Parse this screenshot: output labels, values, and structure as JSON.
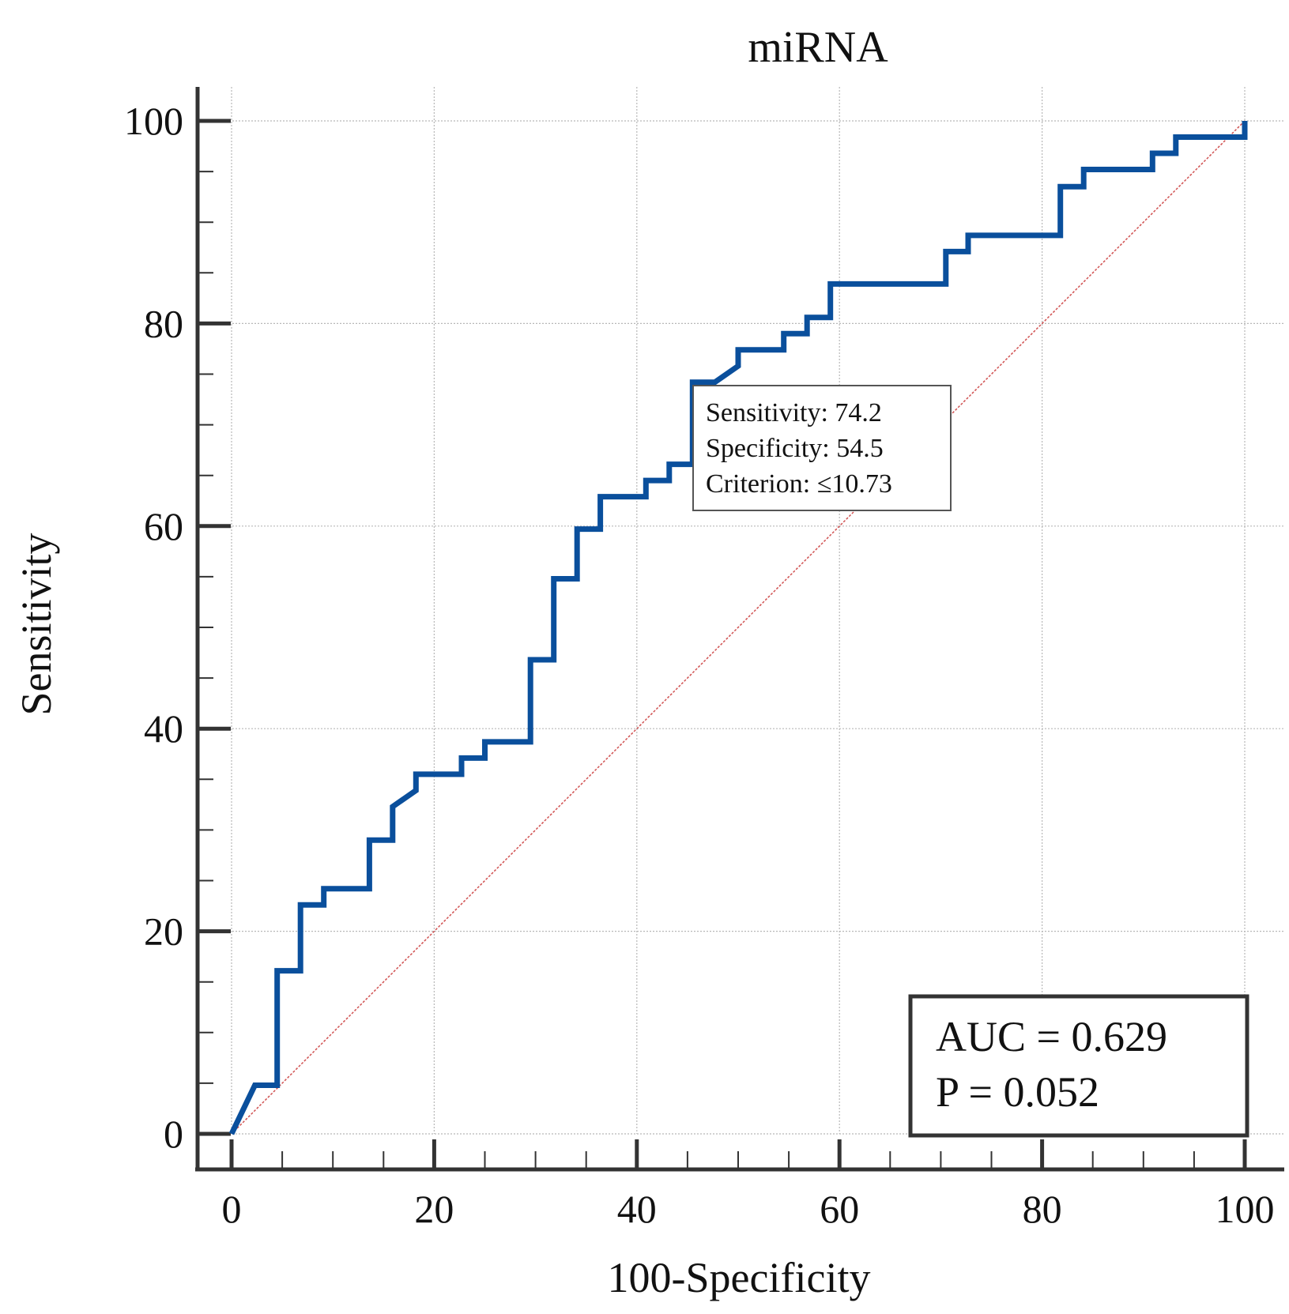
{
  "chart_data": {
    "type": "line",
    "title": "miRNA",
    "xlabel": "100-Specificity",
    "ylabel": "Sensitivity",
    "xlim": [
      0,
      100
    ],
    "ylim": [
      0,
      100
    ],
    "xticks": [
      0,
      20,
      40,
      60,
      80,
      100
    ],
    "yticks": [
      0,
      20,
      40,
      60,
      80,
      100
    ],
    "grid": true,
    "series": [
      {
        "color": "#0a4f9c",
        "x": [
          0,
          2.3,
          4.5,
          4.5,
          6.8,
          6.8,
          9.1,
          9.1,
          13.6,
          13.6,
          15.9,
          15.9,
          18.2,
          18.2,
          22.7,
          22.7,
          25,
          25,
          29.5,
          29.5,
          31.8,
          31.8,
          34.1,
          34.1,
          36.4,
          36.4,
          40.9,
          40.9,
          43.2,
          43.2,
          45.5,
          45.5,
          47.7,
          50,
          50,
          54.5,
          54.5,
          56.8,
          56.8,
          59.1,
          59.1,
          70.5,
          70.5,
          72.7,
          72.7,
          81.8,
          81.8,
          84.1,
          84.1,
          90.9,
          90.9,
          93.2,
          93.2,
          100,
          100
        ],
        "y": [
          0,
          4.8,
          4.8,
          16.1,
          16.1,
          22.6,
          22.6,
          24.2,
          24.2,
          29.0,
          29.0,
          32.3,
          33.9,
          35.5,
          35.5,
          37.1,
          37.1,
          38.7,
          38.7,
          46.8,
          46.8,
          54.8,
          54.8,
          59.7,
          59.7,
          62.9,
          62.9,
          64.5,
          64.5,
          66.1,
          66.1,
          74.2,
          74.2,
          75.8,
          77.4,
          77.4,
          79.0,
          79.0,
          80.6,
          80.6,
          83.9,
          83.9,
          87.1,
          87.1,
          88.7,
          88.7,
          93.5,
          93.5,
          95.2,
          95.2,
          96.8,
          96.8,
          98.4,
          98.4,
          100
        ]
      },
      {
        "color": "#d05050",
        "x": [
          0,
          100
        ],
        "y": [
          0,
          100
        ]
      }
    ],
    "annotation": {
      "lines": [
        "Sensitivity: 74.2",
        "Specificity: 54.5",
        "Criterion: ≤10.73"
      ]
    },
    "stats": {
      "auc": "AUC = 0.629",
      "p": "P = 0.052"
    }
  }
}
